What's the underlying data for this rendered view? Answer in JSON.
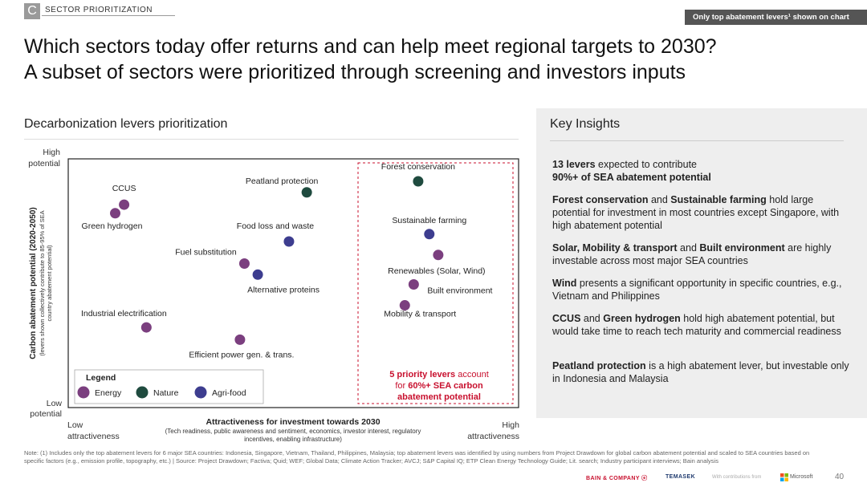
{
  "header": {
    "section_letter": "C",
    "section_label": "SECTOR PRIORITIZATION",
    "badge": "Only top abatement levers¹ shown on chart",
    "title_line1": "Which sectors today offer returns and can help meet regional targets to 2030?",
    "title_line2": "A subset of sectors were prioritized through screening and investors inputs"
  },
  "left_panel": {
    "subtitle": "Decarbonization levers prioritization"
  },
  "chart_data": {
    "type": "scatter",
    "xlabel": "Attractiveness for investment towards 2030",
    "xlabel_note_1": "(Tech readiness, public awareness and sentiment, economics, investor interest, regulatory",
    "xlabel_note_2": "incentives, enabling infrastructure)",
    "ylabel": "Carbon abatement potential (2020-2050)",
    "ylabel_note_1": "(levers shown collectively contribute to 85-95% of SEA",
    "ylabel_note_2": "country abatement potential)",
    "x_low": "Low",
    "x_low_2": "attractiveness",
    "x_high": "High",
    "x_high_2": "attractiveness",
    "y_high": "High",
    "y_high_2": "potential",
    "y_low": "Low",
    "y_low_2": "potential",
    "xlim": [
      0,
      100
    ],
    "ylim": [
      0,
      100
    ],
    "categories": [
      {
        "name": "Energy",
        "color": "#7b3f7f"
      },
      {
        "name": "Nature",
        "color": "#1f4b3f"
      },
      {
        "name": "Agri-food",
        "color": "#3d3d8f"
      }
    ],
    "points": [
      {
        "label": "CCUS",
        "category": "Energy",
        "x": 12,
        "y": 82
      },
      {
        "label": "Green hydrogen",
        "category": "Energy",
        "x": 10,
        "y": 78.5
      },
      {
        "label": "Peatland protection",
        "category": "Nature",
        "x": 53,
        "y": 87
      },
      {
        "label": "Food loss and waste",
        "category": "Agri-food",
        "x": 49,
        "y": 67
      },
      {
        "label": "Fuel substitution",
        "category": "Energy",
        "x": 39,
        "y": 58
      },
      {
        "label": "Alternative proteins",
        "category": "Agri-food",
        "x": 42,
        "y": 53.5
      },
      {
        "label": "Industrial electrification",
        "category": "Energy",
        "x": 17,
        "y": 32
      },
      {
        "label": "Efficient power gen. & trans.",
        "category": "Energy",
        "x": 38,
        "y": 27
      },
      {
        "label": "Forest conservation",
        "category": "Nature",
        "x": 78,
        "y": 91.5
      },
      {
        "label": "Sustainable farming",
        "category": "Agri-food",
        "x": 80.5,
        "y": 70
      },
      {
        "label": "Renewables (Solar, Wind)",
        "category": "Energy",
        "x": 82.5,
        "y": 61.5
      },
      {
        "label": "Built environment",
        "category": "Energy",
        "x": 77,
        "y": 49.5
      },
      {
        "label": "Mobility & transport",
        "category": "Energy",
        "x": 75,
        "y": 41
      }
    ],
    "legend_title": "Legend",
    "priority_note_part1": "5 priority levers",
    "priority_note_part2": " account",
    "priority_note_line2a": "for ",
    "priority_note_line2b": "60%+ SEA carbon",
    "priority_note_line3": "abatement potential",
    "priority_color": "#c8102e"
  },
  "insights": {
    "title": "Key Insights",
    "items": [
      {
        "bold1": "13 levers",
        "text1": " expected to contribute",
        "bold2": "90%+ of SEA abatement potential",
        "text2": ""
      },
      {
        "bold1": "Forest conservation",
        "text1": " and ",
        "bold2": "Sustainable farming",
        "text2": " hold large potential for investment in most countries except Singapore, with high abatement potential"
      },
      {
        "bold1": "Solar, Mobility & transport",
        "text1": " and ",
        "bold2": "Built environment",
        "text2": " are highly investable across most major SEA countries"
      },
      {
        "bold1": "Wind",
        "text1": " presents a significant opportunity in specific countries, e.g., Vietnam and Philippines",
        "bold2": "",
        "text2": ""
      },
      {
        "bold1": "CCUS",
        "text1": " and ",
        "bold2": "Green hydrogen",
        "text2": " hold high abatement potential, but would take time to reach tech maturity and commercial readiness"
      },
      {
        "bold1": "Peatland protection",
        "text1": " is a high abatement lever, but investable only in Indonesia and Malaysia",
        "bold2": "",
        "text2": ""
      }
    ]
  },
  "footer": {
    "note": "Note: (1) Includes only the top abatement levers for 6 major SEA countries: Indonesia, Singapore, Vietnam, Thailand, Philippines, Malaysia; top abatement levers was identified by using numbers from Project Drawdown for global carbon abatement potential and scaled to SEA countries based on specific factors (e.g., emission profile, topography, etc.) | Source: Project Drawdown; Factiva; Quid; WEF; Global Data; Climate Action Tracker; AVCJ; S&P Capital IQ; ETP Clean Energy Technology Guide; Lit. search; Industry participant interviews; Bain analysis",
    "bain": "BAIN & COMPANY ⓔ",
    "temasek": "TEMASEK",
    "contrib": "With contributions from",
    "microsoft": "Microsoft",
    "page": "40"
  }
}
